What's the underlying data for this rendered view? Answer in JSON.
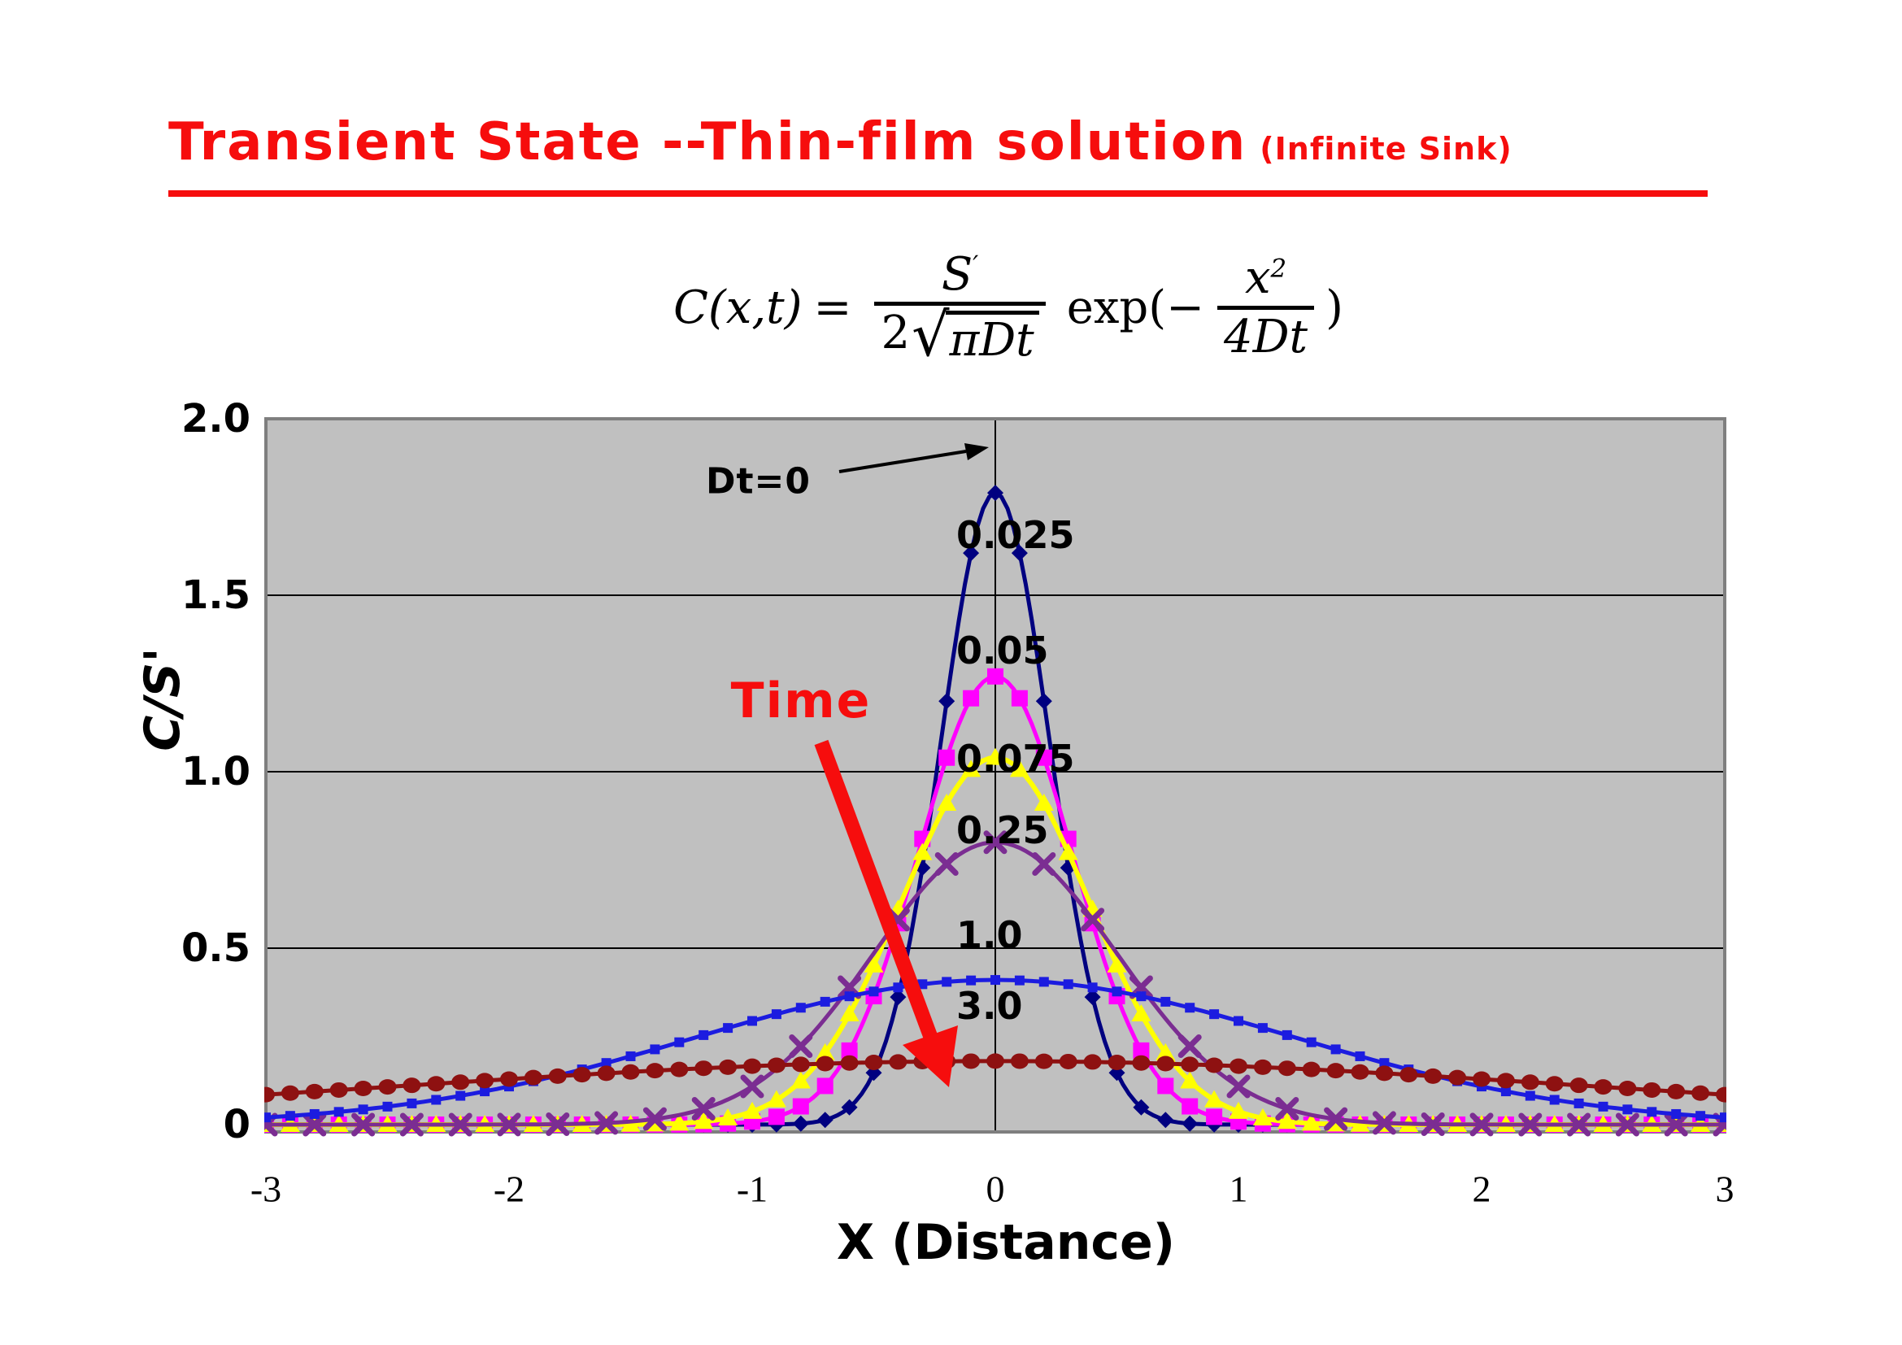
{
  "title": {
    "main": "Transient State --Thin-film solution",
    "sub": "(Infinite Sink)"
  },
  "colors": {
    "title_red": "#F60D0D",
    "annotation_red": "#F60D0D",
    "plot_bg": "#C0C0C0",
    "grid_black": "#000000",
    "plot_border_gray": "#7F7F7F",
    "arrow_black": "#000000"
  },
  "formula": {
    "lhs": "C(x,t)",
    "eq": "=",
    "num_s": "S",
    "num_prime": "′",
    "den_2": "2",
    "den_sqrt": "√",
    "den_rad": "πDt",
    "exp_open": "exp(−",
    "exp_num_base": "x",
    "exp_num_sup": "2",
    "exp_den": "4Dt",
    "close": ")"
  },
  "annotations": {
    "dt0": "Dt=0",
    "time": "Time"
  },
  "chart_data": {
    "type": "line",
    "title": "",
    "x_label": "X (Distance)",
    "y_label": "C/S'",
    "xlim": [
      -3,
      3
    ],
    "ylim": [
      0,
      2
    ],
    "grid": "horizontal black gridlines at y=0.5,1.0,1.5; vertical black line at x=0; gray plot background",
    "legend": "none (curves labeled by Dt value annotations on chart)",
    "model": "y = peak * exp(-x^2 / width); curves are thin-film diffusion profiles for increasing Dt",
    "x_ticks": [
      {
        "label": "-3",
        "value": -3
      },
      {
        "label": "-2",
        "value": -2
      },
      {
        "label": "-1",
        "value": -1
      },
      {
        "label": "0",
        "value": 0
      },
      {
        "label": "1",
        "value": 1
      },
      {
        "label": "2",
        "value": 2
      },
      {
        "label": "3",
        "value": 3
      }
    ],
    "y_ticks": [
      {
        "label": "2.0",
        "value": 2.0
      },
      {
        "label": "1.5",
        "value": 1.5
      },
      {
        "label": "1.0",
        "value": 1.0
      },
      {
        "label": "0.5",
        "value": 0.5
      },
      {
        "label": "0",
        "value": 0
      }
    ],
    "series": [
      {
        "label": "0.025",
        "Dt": 0.025,
        "color": "#000080",
        "marker": "diamond",
        "peak": 1.79,
        "width": 0.1,
        "marker_step": 0.1,
        "line_width": 5,
        "sample_points": {
          "symmetric": true,
          "x": [
            0,
            0.25,
            0.5,
            0.75,
            1,
            1.5,
            2,
            3
          ],
          "y": [
            1.79,
            0.96,
            0.15,
            0.01,
            0,
            0,
            0,
            0
          ]
        }
      },
      {
        "label": "0.05",
        "Dt": 0.05,
        "color": "#FF00FF",
        "marker": "square",
        "peak": 1.27,
        "width": 0.2,
        "marker_step": 0.1,
        "line_width": 5,
        "sample_points": {
          "symmetric": true,
          "x": [
            0,
            0.25,
            0.5,
            0.75,
            1,
            1.5,
            2,
            3
          ],
          "y": [
            1.27,
            0.93,
            0.36,
            0.08,
            0.01,
            0,
            0,
            0
          ]
        }
      },
      {
        "label": "0.075",
        "Dt": 0.075,
        "color": "#FFFF00",
        "marker": "triangle",
        "peak": 1.04,
        "width": 0.3,
        "marker_step": 0.1,
        "line_width": 6,
        "sample_points": {
          "symmetric": true,
          "x": [
            0,
            0.25,
            0.5,
            0.75,
            1,
            1.5,
            2,
            3
          ],
          "y": [
            1.04,
            0.84,
            0.45,
            0.16,
            0.04,
            0,
            0,
            0
          ]
        }
      },
      {
        "label": "0.25",
        "Dt": 0.25,
        "color": "#7B2D92",
        "marker": "xcross",
        "peak": 0.8,
        "width": 0.5,
        "marker_step": 0.2,
        "line_width": 5,
        "sample_points": {
          "symmetric": true,
          "x": [
            0,
            0.25,
            0.5,
            0.75,
            1,
            1.5,
            2,
            3
          ],
          "y": [
            0.8,
            0.71,
            0.49,
            0.26,
            0.11,
            0.01,
            0,
            0
          ]
        }
      },
      {
        "label": "1.0",
        "Dt": 1.0,
        "color": "#1C1CE0",
        "marker": "smallsquare",
        "peak": 0.41,
        "width": 3.0,
        "marker_step": 0.1,
        "line_width": 5,
        "sample_points": {
          "symmetric": true,
          "x": [
            0,
            0.5,
            1,
            1.5,
            2,
            2.5,
            3
          ],
          "y": [
            0.41,
            0.38,
            0.29,
            0.19,
            0.11,
            0.05,
            0.02
          ]
        }
      },
      {
        "label": "3.0",
        "Dt": 3.0,
        "color": "#8E1111",
        "marker": "circle",
        "peak": 0.18,
        "width": 12.0,
        "marker_step": 0.1,
        "line_width": 5,
        "sample_points": {
          "symmetric": true,
          "x": [
            0,
            0.5,
            1,
            1.5,
            2,
            2.5,
            3
          ],
          "y": [
            0.18,
            0.18,
            0.17,
            0.15,
            0.13,
            0.11,
            0.09
          ]
        }
      }
    ]
  }
}
